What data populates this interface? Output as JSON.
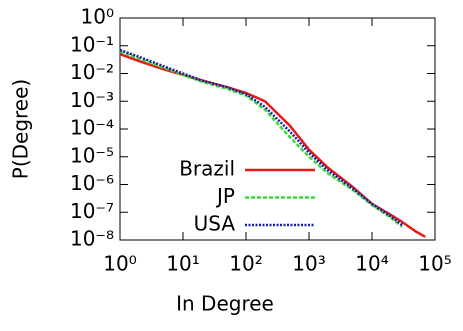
{
  "chart_data": {
    "type": "line",
    "x_label": "In Degree",
    "y_label": "P(Degree)",
    "x": [
      1,
      2,
      5,
      10,
      20,
      50,
      100,
      200,
      500,
      1000,
      2000,
      5000,
      10000,
      20000,
      30000,
      50000,
      70000
    ],
    "series": [
      {
        "name": "Brazil",
        "color": "#e41a1c",
        "dash": "solid",
        "values": [
          0.05,
          0.028,
          0.014,
          0.0089,
          0.0056,
          0.0032,
          0.002,
          0.001,
          0.00013,
          1.8e-05,
          4e-06,
          8e-07,
          2e-07,
          8e-08,
          4.5e-08,
          2e-08,
          1.3e-08
        ]
      },
      {
        "name": "JP",
        "color": "#33dd33",
        "dash": "dashed",
        "values": [
          0.063,
          0.035,
          0.016,
          0.0089,
          0.005,
          0.0028,
          0.0016,
          0.0005,
          5e-05,
          1e-05,
          2.5e-06,
          6.3e-07,
          1.8e-07,
          6.3e-08,
          3e-08,
          null,
          null
        ]
      },
      {
        "name": "USA",
        "color": "#1a1aa8",
        "dash": "dotted",
        "values": [
          0.07,
          0.04,
          0.018,
          0.01,
          0.0056,
          0.0032,
          0.0018,
          0.00063,
          8e-05,
          1.4e-05,
          3.2e-06,
          7e-07,
          2e-07,
          7e-08,
          3.5e-08,
          null,
          null
        ]
      }
    ],
    "xlog": true,
    "ylog": true,
    "xlim": [
      1,
      100000
    ],
    "ylim": [
      1e-08,
      1
    ],
    "xticks": [
      {
        "value": 1,
        "label": "10⁰"
      },
      {
        "value": 10,
        "label": "10¹"
      },
      {
        "value": 100,
        "label": "10²"
      },
      {
        "value": 1000,
        "label": "10³"
      },
      {
        "value": 10000,
        "label": "10⁴"
      },
      {
        "value": 100000,
        "label": "10⁵"
      }
    ],
    "yticks": [
      {
        "value": 1e-08,
        "label": "10⁻⁸"
      },
      {
        "value": 1e-07,
        "label": "10⁻⁷"
      },
      {
        "value": 1e-06,
        "label": "10⁻⁶"
      },
      {
        "value": 1e-05,
        "label": "10⁻⁵"
      },
      {
        "value": 0.0001,
        "label": "10⁻⁴"
      },
      {
        "value": 0.001,
        "label": "10⁻³"
      },
      {
        "value": 0.01,
        "label": "10⁻²"
      },
      {
        "value": 0.1,
        "label": "10⁻¹"
      },
      {
        "value": 1,
        "label": "10⁰"
      }
    ],
    "legend": "bottom left"
  }
}
